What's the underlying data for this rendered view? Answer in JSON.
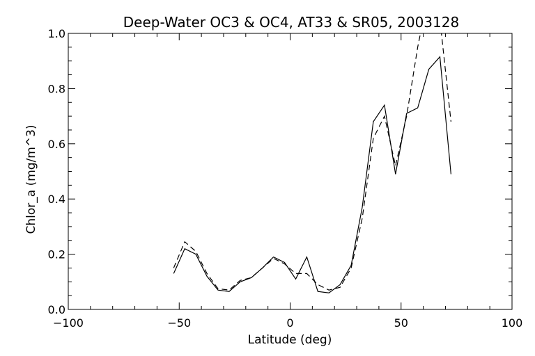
{
  "chart_data": {
    "type": "line",
    "title": "Deep-Water OC3 & OC4, AT33 & SR05, 2003128",
    "xlabel": "Latitude (deg)",
    "ylabel": "Chlor_a (mg/m^3)",
    "xlim": [
      -100,
      100
    ],
    "ylim": [
      0.0,
      1.0
    ],
    "xticks": [
      -100,
      -50,
      0,
      50,
      100
    ],
    "xtick_labels": [
      "−100",
      "−50",
      "0",
      "50",
      "100"
    ],
    "yticks": [
      0.0,
      0.2,
      0.4,
      0.6,
      0.8,
      1.0
    ],
    "ytick_labels": [
      "0.0",
      "0.2",
      "0.4",
      "0.6",
      "0.8",
      "1.0"
    ],
    "grid": false,
    "series": [
      {
        "style": "solid",
        "x": [
          -52.5,
          -47.5,
          -42.5,
          -37.5,
          -32.5,
          -27.5,
          -22.5,
          -17.5,
          -12.5,
          -7.5,
          -2.5,
          2.5,
          7.5,
          12.5,
          17.5,
          22.5,
          27.5,
          32.5,
          37.5,
          42.5,
          47.5,
          52.5,
          57.5,
          62.5,
          67.5,
          72.5
        ],
        "y": [
          0.13,
          0.22,
          0.2,
          0.12,
          0.07,
          0.065,
          0.1,
          0.115,
          0.15,
          0.19,
          0.17,
          0.11,
          0.19,
          0.065,
          0.06,
          0.09,
          0.16,
          0.37,
          0.68,
          0.74,
          0.49,
          0.71,
          0.73,
          0.87,
          0.915,
          0.49
        ]
      },
      {
        "style": "dashed",
        "x": [
          -52.5,
          -47.5,
          -42.5,
          -37.5,
          -32.5,
          -27.5,
          -22.5,
          -17.5,
          -12.5,
          -7.5,
          -2.5,
          2.5,
          7.5,
          12.5,
          17.5,
          22.5,
          27.5,
          32.5,
          37.5,
          42.5,
          47.5,
          52.5,
          57.5,
          62.5,
          67.5,
          72.5
        ],
        "y": [
          0.15,
          0.245,
          0.21,
          0.13,
          0.075,
          0.07,
          0.105,
          0.115,
          0.15,
          0.185,
          0.165,
          0.13,
          0.13,
          0.09,
          0.07,
          0.08,
          0.15,
          0.33,
          0.62,
          0.7,
          0.52,
          0.7,
          0.95,
          1.15,
          1.05,
          0.68
        ]
      }
    ]
  }
}
